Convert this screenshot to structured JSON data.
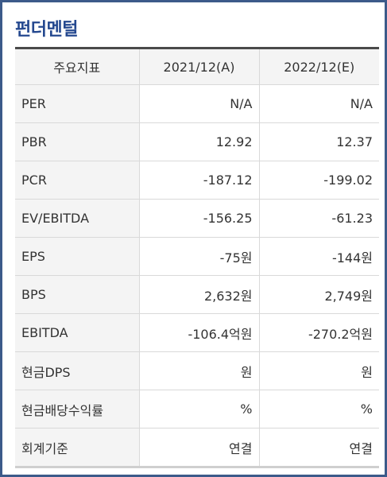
{
  "title": "펀더멘털",
  "columns": [
    "주요지표",
    "2021/12(A)",
    "2022/12(E)"
  ],
  "rows": [
    {
      "label": "PER",
      "values": [
        "N/A",
        "N/A"
      ]
    },
    {
      "label": "PBR",
      "values": [
        "12.92",
        "12.37"
      ]
    },
    {
      "label": "PCR",
      "values": [
        "-187.12",
        "-199.02"
      ]
    },
    {
      "label": "EV/EBITDA",
      "values": [
        "-156.25",
        "-61.23"
      ]
    },
    {
      "label": "EPS",
      "values": [
        "-75원",
        "-144원"
      ]
    },
    {
      "label": "BPS",
      "values": [
        "2,632원",
        "2,749원"
      ]
    },
    {
      "label": "EBITDA",
      "values": [
        "-106.4억원",
        "-270.2억원"
      ]
    },
    {
      "label": "현금DPS",
      "values": [
        "원",
        "원"
      ]
    },
    {
      "label": "현금배당수익률",
      "values": [
        "%",
        "%"
      ]
    },
    {
      "label": "회계기준",
      "values": [
        "연결",
        "연결"
      ]
    }
  ],
  "colors": {
    "title": "#24488f",
    "frame_border": "#3c5a8a",
    "header_bg": "#f4f4f4",
    "top_rule": "#4a4a4a"
  }
}
